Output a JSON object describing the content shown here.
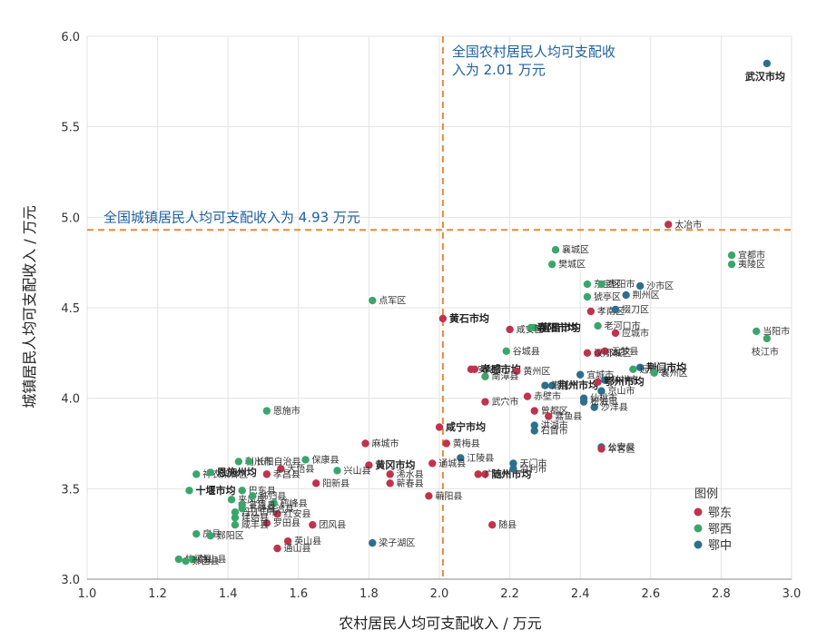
{
  "chart_data": {
    "type": "scatter",
    "xlabel": "农村居民人均可支配收入 / 万元",
    "ylabel": "城镇居民人均可支配收入 / 万元",
    "xlim": [
      1.0,
      3.0
    ],
    "ylim": [
      3.0,
      6.0
    ],
    "xticks": [
      "1.0",
      "1.2",
      "1.4",
      "1.6",
      "1.8",
      "2.0",
      "2.2",
      "2.4",
      "2.6",
      "2.8",
      "3.0"
    ],
    "yticks": [
      "3.0",
      "3.5",
      "4.0",
      "4.5",
      "5.0",
      "5.5",
      "6.0"
    ],
    "grid": true,
    "reference_lines": {
      "x": 2.01,
      "x_label_line1": "全国农村居民人均可支配收",
      "x_label_line2": "入为 2.01 万元",
      "y": 4.93,
      "y_label": "全国城镇居民人均可支配收入为 4.93 万元",
      "color": "#e8893a"
    },
    "legend": {
      "title": "图例",
      "placement": "bottom-right",
      "entries": [
        {
          "name": "鄂东",
          "color": "#c0334d"
        },
        {
          "name": "鄂西",
          "color": "#3aa66b"
        },
        {
          "name": "鄂中",
          "color": "#2e6f8e"
        }
      ]
    },
    "points": [
      {
        "label": "武汉市均",
        "x": 2.93,
        "y": 5.85,
        "group": "鄂中",
        "bold": true
      },
      {
        "label": "太冶市",
        "x": 2.65,
        "y": 4.96,
        "group": "鄂东"
      },
      {
        "label": "宜都市",
        "x": 2.83,
        "y": 4.79,
        "group": "鄂西"
      },
      {
        "label": "夷陵区",
        "x": 2.83,
        "y": 4.74,
        "group": "鄂西"
      },
      {
        "label": "当阳市",
        "x": 2.9,
        "y": 4.37,
        "group": "鄂西"
      },
      {
        "label": "枝江市",
        "x": 2.93,
        "y": 4.33,
        "group": "鄂西"
      },
      {
        "label": "点军区",
        "x": 1.81,
        "y": 4.54,
        "group": "鄂西"
      },
      {
        "label": "襄城区",
        "x": 2.33,
        "y": 4.82,
        "group": "鄂西"
      },
      {
        "label": "樊城区",
        "x": 2.32,
        "y": 4.74,
        "group": "鄂西"
      },
      {
        "label": "东宝区",
        "x": 2.42,
        "y": 4.63,
        "group": "鄂西"
      },
      {
        "label": "枣阳市",
        "x": 2.46,
        "y": 4.63,
        "group": "鄂西"
      },
      {
        "label": "沙市区",
        "x": 2.57,
        "y": 4.62,
        "group": "鄂中"
      },
      {
        "label": "猇亭区",
        "x": 2.42,
        "y": 4.56,
        "group": "鄂西"
      },
      {
        "label": "荆州区",
        "x": 2.53,
        "y": 4.57,
        "group": "鄂中"
      },
      {
        "label": "宜昌市均",
        "x": 2.27,
        "y": 4.39,
        "group": "鄂西",
        "bold": true
      },
      {
        "label": "孝南区",
        "x": 2.43,
        "y": 4.48,
        "group": "鄂东"
      },
      {
        "label": "掇刀区",
        "x": 2.5,
        "y": 4.49,
        "group": "鄂中"
      },
      {
        "label": "咸安区",
        "x": 2.2,
        "y": 4.38,
        "group": "鄂东"
      },
      {
        "label": "黄石市均",
        "x": 2.01,
        "y": 4.44,
        "group": "鄂东",
        "bold": true
      },
      {
        "label": "襄阳市均",
        "x": 2.26,
        "y": 4.39,
        "group": "鄂西",
        "bold": true
      },
      {
        "label": "老河口市",
        "x": 2.45,
        "y": 4.4,
        "group": "鄂西"
      },
      {
        "label": "应城市",
        "x": 2.5,
        "y": 4.36,
        "group": "鄂东"
      },
      {
        "label": "谷城县",
        "x": 2.19,
        "y": 4.26,
        "group": "鄂西"
      },
      {
        "label": "鄂城区",
        "x": 2.45,
        "y": 4.25,
        "group": "鄂东"
      },
      {
        "label": "云梦县",
        "x": 2.47,
        "y": 4.26,
        "group": "鄂东"
      },
      {
        "label": "汉川市",
        "x": 2.42,
        "y": 4.25,
        "group": "鄂东"
      },
      {
        "label": "安陆市",
        "x": 2.09,
        "y": 4.16,
        "group": "鄂东"
      },
      {
        "label": "荆门市均",
        "x": 2.57,
        "y": 4.17,
        "group": "鄂中",
        "bold": true
      },
      {
        "label": "孝感市均",
        "x": 2.1,
        "y": 4.16,
        "group": "鄂东",
        "bold": true
      },
      {
        "label": "黄州区",
        "x": 2.22,
        "y": 4.15,
        "group": "鄂东"
      },
      {
        "label": "远安县",
        "x": 2.55,
        "y": 4.16,
        "group": "鄂西"
      },
      {
        "label": "南漳县",
        "x": 2.13,
        "y": 4.12,
        "group": "鄂西"
      },
      {
        "label": "宜城市",
        "x": 2.4,
        "y": 4.13,
        "group": "鄂中"
      },
      {
        "label": "襄州区",
        "x": 2.61,
        "y": 4.14,
        "group": "鄂西"
      },
      {
        "label": "荆州市均",
        "x": 2.32,
        "y": 4.07,
        "group": "鄂中",
        "bold": true
      },
      {
        "label": "钟祥市",
        "x": 2.47,
        "y": 4.1,
        "group": "鄂中"
      },
      {
        "label": "鄂州市均",
        "x": 2.45,
        "y": 4.09,
        "group": "鄂东",
        "bold": true
      },
      {
        "label": "赤壁市",
        "x": 2.25,
        "y": 4.01,
        "group": "鄂东"
      },
      {
        "label": "潜江市",
        "x": 2.3,
        "y": 4.07,
        "group": "鄂中"
      },
      {
        "label": "京山市",
        "x": 2.46,
        "y": 4.04,
        "group": "鄂中"
      },
      {
        "label": "武穴市",
        "x": 2.13,
        "y": 3.98,
        "group": "鄂东"
      },
      {
        "label": "曾都区",
        "x": 2.27,
        "y": 3.93,
        "group": "鄂东"
      },
      {
        "label": "仙桃市",
        "x": 2.41,
        "y": 4.0,
        "group": "鄂中"
      },
      {
        "label": "咸宁市均",
        "x": 2.0,
        "y": 3.84,
        "group": "鄂东",
        "bold": true
      },
      {
        "label": "洪湖市",
        "x": 2.27,
        "y": 3.85,
        "group": "鄂中"
      },
      {
        "label": "嘉鱼县",
        "x": 2.31,
        "y": 3.9,
        "group": "鄂东"
      },
      {
        "label": "沙洋县",
        "x": 2.44,
        "y": 3.95,
        "group": "鄂中"
      },
      {
        "label": "黄梅县",
        "x": 2.02,
        "y": 3.75,
        "group": "鄂东"
      },
      {
        "label": "石首市",
        "x": 2.27,
        "y": 3.82,
        "group": "鄂中"
      },
      {
        "label": "公安县",
        "x": 2.46,
        "y": 3.73,
        "group": "鄂中"
      },
      {
        "label": "松滋市",
        "x": 2.41,
        "y": 3.98,
        "group": "鄂中"
      },
      {
        "label": "江陵县",
        "x": 2.06,
        "y": 3.67,
        "group": "鄂中"
      },
      {
        "label": "天门市",
        "x": 2.21,
        "y": 3.64,
        "group": "鄂中"
      },
      {
        "label": "华容区",
        "x": 2.46,
        "y": 3.72,
        "group": "鄂东"
      },
      {
        "label": "通城县",
        "x": 1.98,
        "y": 3.64,
        "group": "鄂东"
      },
      {
        "label": "随州市均",
        "x": 2.13,
        "y": 3.58,
        "group": "鄂东",
        "bold": true
      },
      {
        "label": "广水市",
        "x": 2.11,
        "y": 3.58,
        "group": "鄂东"
      },
      {
        "label": "监利市",
        "x": 2.21,
        "y": 3.61,
        "group": "鄂中"
      },
      {
        "label": "随县",
        "x": 2.15,
        "y": 3.3,
        "group": "鄂东"
      },
      {
        "label": "恩施市",
        "x": 1.51,
        "y": 3.93,
        "group": "鄂西"
      },
      {
        "label": "麻城市",
        "x": 1.79,
        "y": 3.75,
        "group": "鄂东"
      },
      {
        "label": "利川市",
        "x": 1.43,
        "y": 3.65,
        "group": "鄂西"
      },
      {
        "label": "长阳自治县",
        "x": 1.46,
        "y": 3.65,
        "group": "鄂西"
      },
      {
        "label": "保康县",
        "x": 1.62,
        "y": 3.66,
        "group": "鄂西"
      },
      {
        "label": "神农架林区",
        "x": 1.31,
        "y": 3.58,
        "group": "鄂西"
      },
      {
        "label": "恩施州均",
        "x": 1.35,
        "y": 3.59,
        "group": "鄂西",
        "bold": true
      },
      {
        "label": "大悟县",
        "x": 1.55,
        "y": 3.61,
        "group": "鄂东"
      },
      {
        "label": "黄冈市均",
        "x": 1.8,
        "y": 3.63,
        "group": "鄂东",
        "bold": true
      },
      {
        "label": "兴山县",
        "x": 1.71,
        "y": 3.6,
        "group": "鄂西"
      },
      {
        "label": "浠水县",
        "x": 1.86,
        "y": 3.58,
        "group": "鄂东"
      },
      {
        "label": "阳新县",
        "x": 1.65,
        "y": 3.53,
        "group": "鄂东"
      },
      {
        "label": "孝昌县",
        "x": 1.51,
        "y": 3.58,
        "group": "鄂东"
      },
      {
        "label": "十堰市均",
        "x": 1.29,
        "y": 3.49,
        "group": "鄂西",
        "bold": true
      },
      {
        "label": "巴东县",
        "x": 1.44,
        "y": 3.49,
        "group": "鄂西"
      },
      {
        "label": "来凤县",
        "x": 1.41,
        "y": 3.44,
        "group": "鄂西"
      },
      {
        "label": "秭归县",
        "x": 1.47,
        "y": 3.46,
        "group": "鄂西"
      },
      {
        "label": "鹤峰县",
        "x": 1.53,
        "y": 3.42,
        "group": "鄂西"
      },
      {
        "label": "蕲春县",
        "x": 1.86,
        "y": 3.53,
        "group": "鄂东"
      },
      {
        "label": "蕲阳县",
        "x": 1.97,
        "y": 3.46,
        "group": "鄂东"
      },
      {
        "label": "房县",
        "x": 1.31,
        "y": 3.25,
        "group": "鄂西"
      },
      {
        "label": "郧阳区",
        "x": 1.35,
        "y": 3.24,
        "group": "鄂西"
      },
      {
        "label": "红安县",
        "x": 1.54,
        "y": 3.36,
        "group": "鄂东"
      },
      {
        "label": "丹江口市",
        "x": 1.42,
        "y": 3.37,
        "group": "鄂西"
      },
      {
        "label": "罗田县",
        "x": 1.51,
        "y": 3.31,
        "group": "鄂东"
      },
      {
        "label": "团风县",
        "x": 1.64,
        "y": 3.3,
        "group": "鄂东"
      },
      {
        "label": "建始县",
        "x": 1.42,
        "y": 3.34,
        "group": "鄂西"
      },
      {
        "label": "英山县",
        "x": 1.57,
        "y": 3.21,
        "group": "鄂东"
      },
      {
        "label": "咸丰县",
        "x": 1.42,
        "y": 3.3,
        "group": "鄂西"
      },
      {
        "label": "通山县",
        "x": 1.54,
        "y": 3.17,
        "group": "鄂东"
      },
      {
        "label": "竹溪县",
        "x": 1.26,
        "y": 3.11,
        "group": "鄂西"
      },
      {
        "label": "竹山县",
        "x": 1.3,
        "y": 3.11,
        "group": "鄂西"
      },
      {
        "label": "宣恩县",
        "x": 1.44,
        "y": 3.41,
        "group": "鄂西"
      },
      {
        "label": "郧西县",
        "x": 1.28,
        "y": 3.1,
        "group": "鄂西"
      },
      {
        "label": "五峰自治县",
        "x": 1.44,
        "y": 3.39,
        "group": "鄂西"
      },
      {
        "label": "梁子湖区",
        "x": 1.81,
        "y": 3.2,
        "group": "鄂中"
      }
    ]
  }
}
